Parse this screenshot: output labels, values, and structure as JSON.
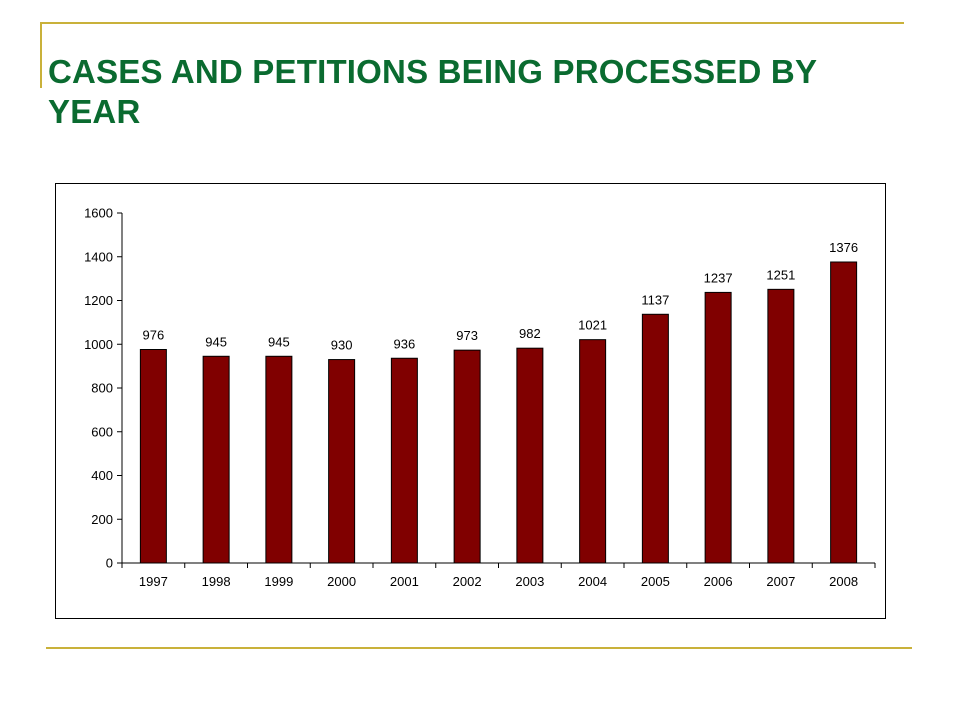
{
  "slide": {
    "title": "CASES AND PETITIONS BEING PROCESSED BY YEAR",
    "accent_color": "#c9b13a",
    "title_color": "#0a6b30"
  },
  "chart_data": {
    "type": "bar",
    "title": "",
    "xlabel": "",
    "ylabel": "",
    "categories": [
      "1997",
      "1998",
      "1999",
      "2000",
      "2001",
      "2002",
      "2003",
      "2004",
      "2005",
      "2006",
      "2007",
      "2008"
    ],
    "values": [
      976,
      945,
      945,
      930,
      936,
      973,
      982,
      1021,
      1137,
      1237,
      1251,
      1376
    ],
    "ylim": [
      0,
      1600
    ],
    "yticks": [
      0,
      200,
      400,
      600,
      800,
      1000,
      1200,
      1400,
      1600
    ],
    "bar_color": "#800000",
    "grid": false,
    "legend": false,
    "data_labels": true
  }
}
